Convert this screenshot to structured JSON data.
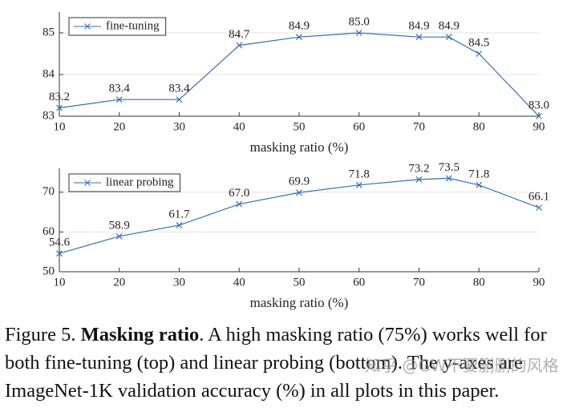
{
  "chart_data": [
    {
      "type": "line",
      "xlabel": "masking ratio (%)",
      "x": [
        10,
        20,
        30,
        40,
        50,
        60,
        70,
        75,
        80,
        90
      ],
      "series": [
        {
          "name": "fine-tuning",
          "color": "#3a6fb0",
          "values": [
            83.2,
            83.4,
            83.4,
            84.7,
            84.9,
            85.0,
            84.9,
            84.9,
            84.5,
            83.0
          ],
          "value_labels": [
            "83.2",
            "83.4",
            "83.4",
            "84.7",
            "84.9",
            "85.0",
            "84.9",
            "84.9",
            "84.5",
            "83.0"
          ]
        }
      ],
      "xlim": [
        10,
        90
      ],
      "ylim": [
        83,
        85.5
      ],
      "xticks": [
        10,
        20,
        30,
        40,
        50,
        60,
        70,
        80,
        90
      ],
      "yticks": [
        83,
        84,
        85
      ],
      "grid": true,
      "legend": "upper left",
      "marker": "x"
    },
    {
      "type": "line",
      "xlabel": "masking ratio (%)",
      "x": [
        10,
        20,
        30,
        40,
        50,
        60,
        70,
        75,
        80,
        90
      ],
      "series": [
        {
          "name": "linear probing",
          "color": "#3a6fb0",
          "values": [
            54.6,
            58.9,
            61.7,
            67.0,
            69.9,
            71.8,
            73.2,
            73.5,
            71.8,
            66.1
          ],
          "value_labels": [
            "54.6",
            "58.9",
            "61.7",
            "67.0",
            "69.9",
            "71.8",
            "73.2",
            "73.5",
            "71.8",
            "66.1"
          ]
        }
      ],
      "xlim": [
        10,
        90
      ],
      "ylim": [
        50,
        76
      ],
      "xticks": [
        10,
        20,
        30,
        40,
        50,
        60,
        70,
        80,
        90
      ],
      "yticks": [
        50,
        60,
        70
      ],
      "grid": true,
      "legend": "upper left",
      "marker": "x"
    }
  ],
  "caption": {
    "label": "Figure 5.",
    "bold": "Masking ratio",
    "text": ". A high masking ratio (75%) works well for both fine-tuning (top) and linear probing (bottom). The y-axes are ImageNet-1K validation accuracy (%) in all plots in this paper."
  },
  "watermark": "知乎 @GW不要删删的风格"
}
